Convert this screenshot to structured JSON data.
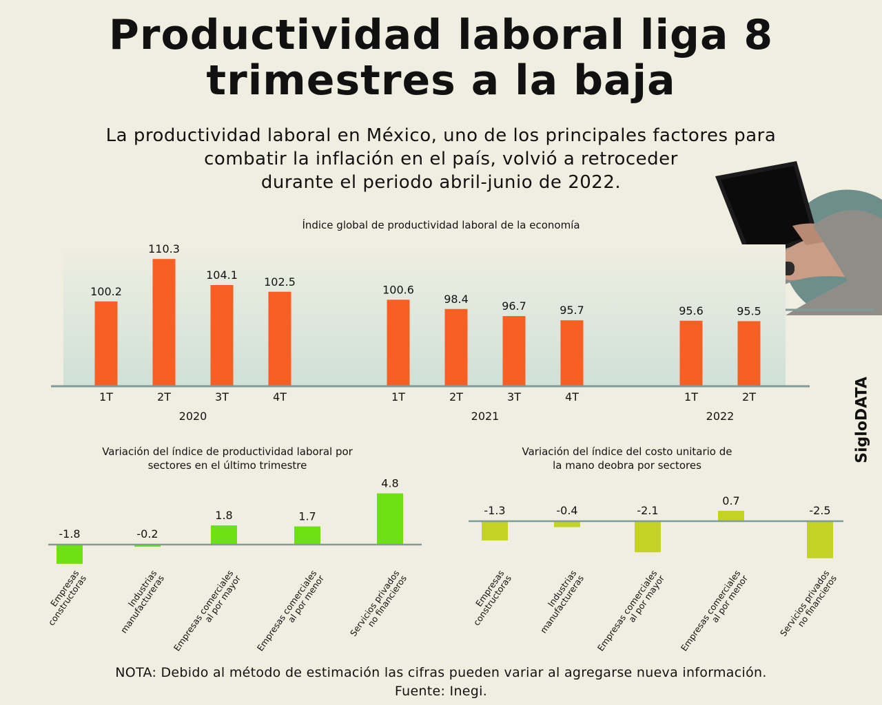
{
  "title_lines": [
    "Productividad laboral liga 8",
    "trimestres a la baja"
  ],
  "subtitle_lines": [
    "La productividad laboral en México, uno de los principales factores para",
    "combatir la inflación en el país, volvió a retroceder",
    "durante el periodo abril-junio de 2022."
  ],
  "brand": "SigloDATA",
  "footer": {
    "note": "NOTA: Debido al método de estimación las cifras pueden variar al agregarse nueva información.",
    "source": "Fuente: Inegi."
  },
  "colors": {
    "background": "#efeee1",
    "main_bar": "#f95f22",
    "sector_bar": "#6ee114",
    "cost_bar": "#c3d224",
    "axis": "#7f9a97",
    "main_bg_gradient_bottom": "#cfe1d8"
  },
  "chart_data": [
    {
      "type": "bar",
      "title": "Índice global de productividad laboral de la economía",
      "groups": [
        {
          "label": "2020",
          "categories": [
            "1T",
            "2T",
            "3T",
            "4T"
          ],
          "values": [
            100.2,
            110.3,
            104.1,
            102.5
          ]
        },
        {
          "label": "2021",
          "categories": [
            "1T",
            "2T",
            "3T",
            "4T"
          ],
          "values": [
            100.6,
            98.4,
            96.7,
            95.7
          ]
        },
        {
          "label": "2022",
          "categories": [
            "1T",
            "2T"
          ],
          "values": [
            95.6,
            95.5
          ]
        }
      ],
      "value_labels": [
        "100.2",
        "110.3",
        "104.1",
        "102.5",
        "100.6",
        "98.4",
        "96.7",
        "95.7",
        "95.6",
        "95.5"
      ]
    },
    {
      "type": "bar",
      "title_lines": [
        "Variación del índice de productividad laboral por",
        "sectores en el último trimestre"
      ],
      "categories": [
        [
          "Empresas",
          "constructoras"
        ],
        [
          "Industrias",
          "manufactureras"
        ],
        [
          "Empresas comerciales",
          "al por mayor"
        ],
        [
          "Empresas comerciales",
          "al por menor"
        ],
        [
          "Servicios privados",
          "no financieros"
        ]
      ],
      "values": [
        -1.8,
        -0.2,
        1.8,
        1.7,
        4.8
      ],
      "value_labels": [
        "-1.8",
        "-0.2",
        "1.8",
        "1.7",
        "4.8"
      ]
    },
    {
      "type": "bar",
      "title_lines": [
        "Variación del índice del costo unitario de",
        "la mano deobra por sectores"
      ],
      "categories": [
        [
          "Empresas",
          "constructoras"
        ],
        [
          "Industrias",
          "manufactureras"
        ],
        [
          "Empresas comerciales",
          "al por mayor"
        ],
        [
          "Empresas comerciales",
          "al por menor"
        ],
        [
          "Servicios privados",
          "no financieros"
        ]
      ],
      "values": [
        -1.3,
        -0.4,
        -2.1,
        0.7,
        -2.5
      ],
      "value_labels": [
        "-1.3",
        "-0.4",
        "-2.1",
        "0.7",
        "-2.5"
      ]
    }
  ]
}
